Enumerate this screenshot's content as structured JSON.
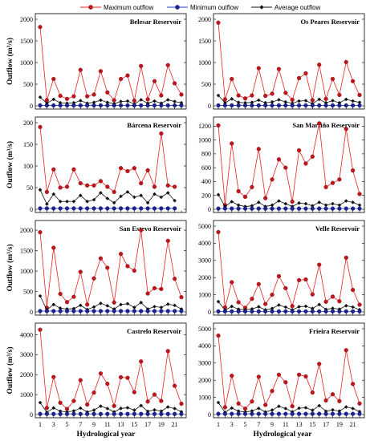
{
  "legend": [
    {
      "label": "Maximum outflow",
      "color": "#e8211f",
      "marker": "#c0151b"
    },
    {
      "label": "Minimum outflow",
      "color": "#2a38c8",
      "marker": "#1a2490"
    },
    {
      "label": "Average outflow",
      "color": "#111111",
      "marker": "#111111"
    }
  ],
  "axis_labels": {
    "x": "Hydrological year",
    "y": "Outflow (m³/s)"
  },
  "chart_data": [
    {
      "type": "line",
      "title": "Belesar Reservoir",
      "x": [
        1,
        2,
        3,
        4,
        5,
        6,
        7,
        8,
        9,
        10,
        11,
        12,
        13,
        14,
        15,
        16,
        17,
        18,
        19,
        20,
        21,
        22
      ],
      "xticks": [
        1,
        3,
        5,
        7,
        9,
        11,
        13,
        15,
        17,
        19,
        21
      ],
      "ylim": [
        0,
        2000
      ],
      "yticks": [
        0,
        500,
        1000,
        1500,
        2000
      ],
      "series": [
        {
          "name": "Maximum outflow",
          "values": [
            1820,
            130,
            620,
            230,
            160,
            220,
            830,
            220,
            260,
            800,
            310,
            130,
            620,
            700,
            120,
            920,
            150,
            570,
            240,
            940,
            520,
            260
          ]
        },
        {
          "name": "Minimum outflow",
          "values": [
            10,
            10,
            10,
            10,
            10,
            10,
            10,
            10,
            10,
            10,
            10,
            10,
            10,
            10,
            10,
            10,
            10,
            10,
            10,
            10,
            10,
            10
          ]
        },
        {
          "name": "Average outflow",
          "values": [
            200,
            60,
            150,
            70,
            60,
            70,
            120,
            60,
            80,
            130,
            80,
            50,
            100,
            110,
            40,
            140,
            60,
            110,
            60,
            140,
            100,
            70
          ]
        }
      ]
    },
    {
      "type": "line",
      "title": "Os Peares Reservoir",
      "x": [
        1,
        2,
        3,
        4,
        5,
        6,
        7,
        8,
        9,
        10,
        11,
        12,
        13,
        14,
        15,
        16,
        17,
        18,
        19,
        20,
        21,
        22
      ],
      "xticks": [
        1,
        3,
        5,
        7,
        9,
        11,
        13,
        15,
        17,
        19,
        21
      ],
      "ylim": [
        0,
        2000
      ],
      "yticks": [
        0,
        500,
        1000,
        1500,
        2000
      ],
      "series": [
        {
          "name": "Maximum outflow",
          "values": [
            1920,
            150,
            620,
            240,
            170,
            240,
            870,
            230,
            280,
            850,
            300,
            140,
            640,
            750,
            130,
            950,
            160,
            620,
            250,
            1010,
            570,
            250
          ]
        },
        {
          "name": "Minimum outflow",
          "values": [
            10,
            10,
            10,
            10,
            10,
            10,
            10,
            10,
            10,
            10,
            10,
            10,
            10,
            10,
            10,
            10,
            10,
            10,
            10,
            10,
            10,
            10
          ]
        },
        {
          "name": "Average outflow",
          "values": [
            240,
            70,
            160,
            80,
            70,
            80,
            130,
            70,
            90,
            140,
            90,
            60,
            110,
            120,
            50,
            150,
            70,
            120,
            70,
            150,
            110,
            80
          ]
        }
      ]
    },
    {
      "type": "line",
      "title": "Bárcena Reservoir",
      "x": [
        1,
        2,
        3,
        4,
        5,
        6,
        7,
        8,
        9,
        10,
        11,
        12,
        13,
        14,
        15,
        16,
        17,
        18,
        19,
        20,
        21,
        22
      ],
      "xticks": [
        1,
        3,
        5,
        7,
        9,
        11,
        13,
        15,
        17,
        19,
        21
      ],
      "ylim": [
        0,
        200
      ],
      "yticks": [
        0,
        50,
        100,
        150,
        200
      ],
      "series": [
        {
          "name": "Maximum outflow",
          "values": [
            190,
            40,
            92,
            50,
            52,
            92,
            60,
            55,
            55,
            65,
            52,
            40,
            95,
            88,
            95,
            60,
            90,
            52,
            175,
            55,
            52,
            null
          ]
        },
        {
          "name": "Minimum outflow",
          "values": [
            2,
            2,
            2,
            2,
            2,
            2,
            2,
            2,
            2,
            2,
            2,
            2,
            2,
            2,
            2,
            2,
            2,
            2,
            2,
            2,
            2,
            null
          ]
        },
        {
          "name": "Average outflow",
          "values": [
            45,
            12,
            35,
            18,
            18,
            18,
            32,
            18,
            22,
            38,
            25,
            15,
            30,
            40,
            28,
            32,
            15,
            35,
            28,
            38,
            20,
            null
          ]
        }
      ]
    },
    {
      "type": "line",
      "title": "San Martiño Reservoir",
      "x": [
        1,
        2,
        3,
        4,
        5,
        6,
        7,
        8,
        9,
        10,
        11,
        12,
        13,
        14,
        15,
        16,
        17,
        18,
        19,
        20,
        21,
        22
      ],
      "xticks": [
        1,
        3,
        5,
        7,
        9,
        11,
        13,
        15,
        17,
        19,
        21
      ],
      "ylim": [
        0,
        1250
      ],
      "yticks": [
        0,
        200,
        400,
        600,
        800,
        1000,
        1200
      ],
      "series": [
        {
          "name": "Maximum outflow",
          "values": [
            1210,
            60,
            950,
            260,
            180,
            320,
            870,
            160,
            430,
            720,
            600,
            110,
            850,
            660,
            760,
            1240,
            320,
            380,
            430,
            1160,
            560,
            220
          ]
        },
        {
          "name": "Minimum outflow",
          "values": [
            10,
            10,
            10,
            10,
            10,
            10,
            10,
            10,
            10,
            10,
            10,
            10,
            10,
            10,
            10,
            10,
            10,
            10,
            10,
            10,
            10,
            10
          ]
        },
        {
          "name": "Average outflow",
          "values": [
            210,
            40,
            110,
            60,
            40,
            50,
            100,
            40,
            60,
            120,
            80,
            40,
            90,
            80,
            50,
            100,
            60,
            80,
            60,
            120,
            100,
            60
          ]
        }
      ]
    },
    {
      "type": "line",
      "title": "San Estevo Reservoir",
      "x": [
        1,
        2,
        3,
        4,
        5,
        6,
        7,
        8,
        9,
        10,
        11,
        12,
        13,
        14,
        15,
        16,
        17,
        18,
        19,
        20,
        21,
        22
      ],
      "xticks": [
        1,
        3,
        5,
        7,
        9,
        11,
        13,
        15,
        17,
        19,
        21
      ],
      "ylim": [
        0,
        2100
      ],
      "yticks": [
        0,
        500,
        1000,
        1500,
        2000
      ],
      "series": [
        {
          "name": "Maximum outflow",
          "values": [
            1950,
            100,
            1570,
            440,
            240,
            370,
            980,
            180,
            820,
            1310,
            1080,
            230,
            1420,
            1120,
            1010,
            2000,
            450,
            580,
            560,
            1740,
            810,
            360
          ]
        },
        {
          "name": "Minimum outflow",
          "values": [
            20,
            20,
            20,
            20,
            20,
            20,
            20,
            20,
            20,
            20,
            20,
            20,
            20,
            20,
            20,
            20,
            20,
            20,
            20,
            20,
            20,
            20
          ]
        },
        {
          "name": "Average outflow",
          "values": [
            390,
            50,
            180,
            90,
            70,
            80,
            160,
            60,
            120,
            210,
            150,
            70,
            180,
            200,
            110,
            230,
            70,
            130,
            110,
            190,
            160,
            70
          ]
        }
      ]
    },
    {
      "type": "line",
      "title": "Velle Reservoir",
      "x": [
        1,
        2,
        3,
        4,
        5,
        6,
        7,
        8,
        9,
        10,
        11,
        12,
        13,
        14,
        15,
        16,
        17,
        18,
        19,
        20,
        21,
        22
      ],
      "xticks": [
        1,
        3,
        5,
        7,
        9,
        11,
        13,
        15,
        17,
        19,
        21
      ],
      "ylim": [
        0,
        5000
      ],
      "yticks": [
        0,
        1000,
        2000,
        3000,
        4000,
        5000
      ],
      "series": [
        {
          "name": "Maximum outflow",
          "values": [
            4650,
            260,
            1730,
            560,
            240,
            760,
            1620,
            460,
            1000,
            2080,
            1380,
            340,
            1850,
            1890,
            1020,
            2750,
            590,
            890,
            620,
            3160,
            1280,
            420
          ]
        },
        {
          "name": "Minimum outflow",
          "values": [
            30,
            30,
            30,
            30,
            30,
            30,
            30,
            30,
            30,
            30,
            30,
            30,
            30,
            30,
            30,
            30,
            30,
            30,
            30,
            30,
            30,
            30
          ]
        },
        {
          "name": "Average outflow",
          "values": [
            600,
            100,
            320,
            160,
            120,
            170,
            300,
            120,
            200,
            400,
            280,
            120,
            300,
            330,
            200,
            430,
            150,
            210,
            160,
            360,
            280,
            130
          ]
        }
      ]
    },
    {
      "type": "line",
      "title": "Castrelo Reservoir",
      "x": [
        1,
        2,
        3,
        4,
        5,
        6,
        7,
        8,
        9,
        10,
        11,
        12,
        13,
        14,
        15,
        16,
        17,
        18,
        19,
        20,
        21,
        22
      ],
      "xticks": [
        1,
        3,
        5,
        7,
        9,
        11,
        13,
        15,
        17,
        19,
        21
      ],
      "ylim": [
        0,
        4300
      ],
      "yticks": [
        0,
        1000,
        2000,
        3000,
        4000
      ],
      "series": [
        {
          "name": "Maximum outflow",
          "values": [
            4250,
            330,
            1880,
            590,
            280,
            680,
            1720,
            500,
            1100,
            2060,
            1540,
            430,
            1870,
            1840,
            1120,
            2660,
            650,
            1000,
            680,
            3180,
            1440,
            540
          ]
        },
        {
          "name": "Minimum outflow",
          "values": [
            30,
            30,
            30,
            30,
            30,
            30,
            30,
            30,
            30,
            30,
            30,
            30,
            30,
            30,
            30,
            30,
            30,
            30,
            30,
            30,
            30,
            30
          ]
        },
        {
          "name": "Average outflow",
          "values": [
            600,
            110,
            330,
            170,
            130,
            180,
            320,
            130,
            220,
            420,
            300,
            130,
            310,
            340,
            220,
            450,
            160,
            230,
            170,
            380,
            300,
            140
          ]
        }
      ]
    },
    {
      "type": "line",
      "title": "Frieira Reservoir",
      "x": [
        1,
        2,
        3,
        4,
        5,
        6,
        7,
        8,
        9,
        10,
        11,
        12,
        13,
        14,
        15,
        16,
        17,
        18,
        19,
        20,
        21,
        22
      ],
      "xticks": [
        1,
        3,
        5,
        7,
        9,
        11,
        13,
        15,
        17,
        19,
        21
      ],
      "ylim": [
        0,
        5000
      ],
      "yticks": [
        0,
        1000,
        2000,
        3000,
        4000,
        5000
      ],
      "series": [
        {
          "name": "Maximum outflow",
          "values": [
            4600,
            420,
            2260,
            640,
            340,
            760,
            2200,
            560,
            1370,
            2320,
            1880,
            480,
            2320,
            2220,
            1280,
            2950,
            820,
            1180,
            780,
            3750,
            1780,
            640
          ]
        },
        {
          "name": "Minimum outflow",
          "values": [
            40,
            40,
            40,
            40,
            40,
            40,
            40,
            40,
            40,
            40,
            40,
            40,
            40,
            40,
            40,
            40,
            40,
            40,
            40,
            40,
            40,
            40
          ]
        },
        {
          "name": "Average outflow",
          "values": [
            700,
            130,
            380,
            200,
            150,
            210,
            360,
            150,
            260,
            480,
            350,
            160,
            370,
            400,
            250,
            520,
            190,
            270,
            200,
            440,
            350,
            170
          ]
        }
      ]
    }
  ]
}
